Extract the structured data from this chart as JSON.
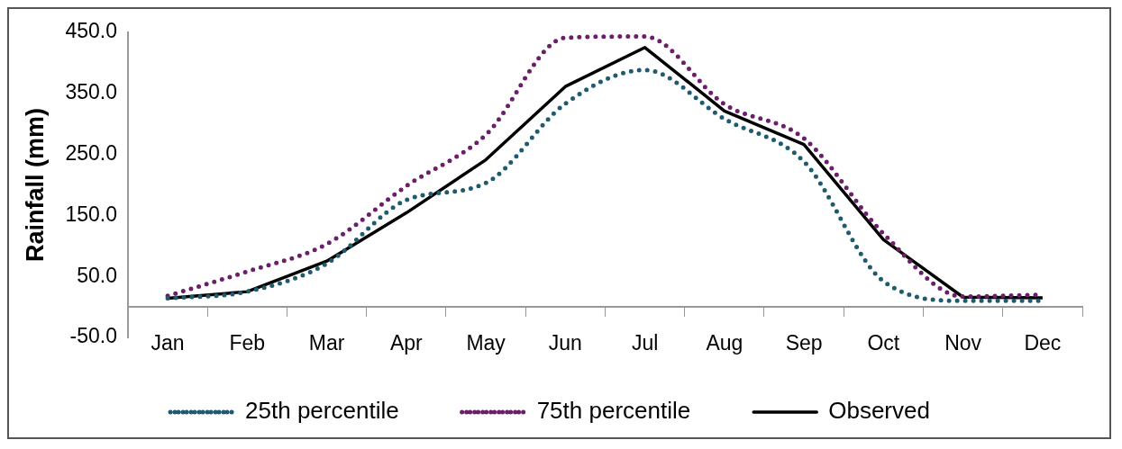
{
  "chart_data": {
    "type": "line",
    "ylabel": "Rainfall (mm)",
    "categories": [
      "Jan",
      "Feb",
      "Mar",
      "Apr",
      "May",
      "Jun",
      "Jul",
      "Aug",
      "Sep",
      "Oct",
      "Nov",
      "Dec"
    ],
    "series": [
      {
        "name": "25th percentile",
        "color": "#1f5a6e",
        "line_style": "dotted",
        "values": [
          14,
          25,
          71,
          175,
          203,
          333,
          388,
          308,
          238,
          42,
          10,
          10
        ]
      },
      {
        "name": "75th percentile",
        "color": "#6b1f6b",
        "line_style": "dotted",
        "values": [
          18,
          58,
          103,
          198,
          282,
          441,
          443,
          332,
          276,
          120,
          17,
          20
        ]
      },
      {
        "name": "Observed",
        "color": "#000000",
        "line_style": "solid",
        "values": [
          14,
          25,
          75,
          154,
          241,
          361,
          425,
          321,
          266,
          110,
          16,
          15
        ]
      }
    ],
    "ylim": [
      -50,
      450
    ],
    "yticks": [
      {
        "value": -50,
        "label": "-50.0"
      },
      {
        "value": 50,
        "label": "50.0"
      },
      {
        "value": 150,
        "label": "150.0"
      },
      {
        "value": 250,
        "label": "250.0"
      },
      {
        "value": 350,
        "label": "350.0"
      },
      {
        "value": 450,
        "label": "450.0"
      }
    ],
    "grid": false,
    "legend": "bottom",
    "marker": "none"
  }
}
